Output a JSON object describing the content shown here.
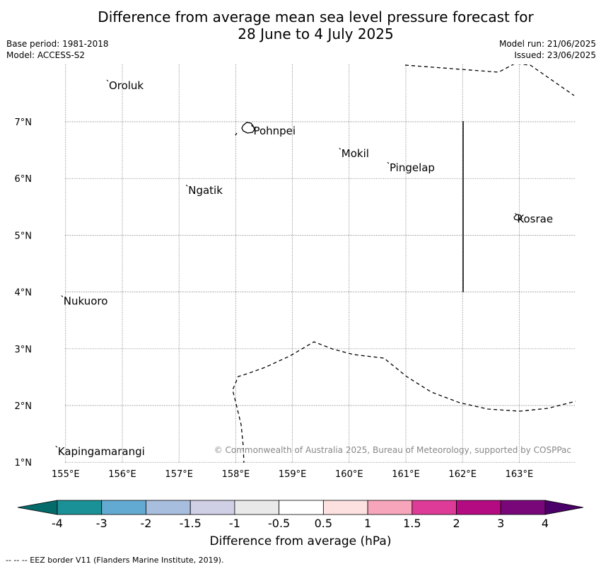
{
  "title": {
    "line1": "Difference from average mean sea level pressure forecast for",
    "line2": "28 June to 4 July 2025"
  },
  "meta_left": {
    "base_period": "Base period: 1981-2018",
    "model": "Model: ACCESS-S2"
  },
  "meta_right": {
    "model_run": "Model run: 21/06/2025",
    "issued": "Issued: 23/06/2025"
  },
  "map": {
    "lat_labels": [
      "7°N",
      "6°N",
      "5°N",
      "4°N",
      "3°N",
      "2°N",
      "1°N"
    ],
    "lon_labels": [
      "155°E",
      "156°E",
      "157°E",
      "158°E",
      "159°E",
      "160°E",
      "161°E",
      "162°E",
      "163°E"
    ],
    "lat_values": [
      7,
      6,
      5,
      4,
      3,
      2,
      1
    ],
    "lon_values": [
      155,
      156,
      157,
      158,
      159,
      160,
      161,
      162,
      163
    ],
    "places": [
      {
        "name": "Oroluk",
        "lon": 155.75,
        "lat": 7.65
      },
      {
        "name": "Pohnpei",
        "lon": 158.3,
        "lat": 6.85
      },
      {
        "name": "Mokil",
        "lon": 159.85,
        "lat": 6.45
      },
      {
        "name": "Pingelap",
        "lon": 160.7,
        "lat": 6.2
      },
      {
        "name": "Ngatik",
        "lon": 157.15,
        "lat": 5.8
      },
      {
        "name": "Kosrae",
        "lon": 162.95,
        "lat": 5.3
      },
      {
        "name": "Nukuoro",
        "lon": 154.95,
        "lat": 3.85
      },
      {
        "name": "Kapingamarangi",
        "lon": 154.85,
        "lat": 1.2
      }
    ],
    "copyright": "© Commonwealth of Australia 2025, Bureau of Meteorology, supported by COSPPac"
  },
  "colorbar": {
    "tick_labels": [
      "-4",
      "-3",
      "-2",
      "-1.5",
      "-1",
      "-0.5",
      "0.5",
      "1",
      "1.5",
      "2",
      "3",
      "4"
    ],
    "colors": [
      "#1a9196",
      "#62aad2",
      "#a8bedf",
      "#cfcfe6",
      "#e9e9e9",
      "#ffffff",
      "#fde0e0",
      "#f6a5bb",
      "#de3a97",
      "#b40a82",
      "#7a077a"
    ],
    "low_extend_color": "#046b6a",
    "high_extend_color": "#4a0068",
    "label": "Difference from average (hPa)"
  },
  "footer": "--  --  -- EEZ border V11 (Flanders Marine Institute, 2019)."
}
